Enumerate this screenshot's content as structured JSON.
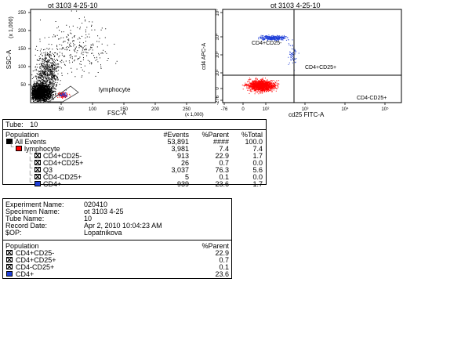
{
  "plot1": {
    "title": "ot 3103 4-25-10",
    "xlabel": "FSC-A",
    "ylabel": "SSC-A",
    "y_unit": "(x 1,000)",
    "x_unit": "(x 1,000)",
    "y_ticks": [
      "250",
      "200",
      "150",
      "100",
      "50"
    ],
    "x_ticks": [
      "50",
      "100",
      "150",
      "200",
      "250"
    ],
    "gate_label": "lymphocyte"
  },
  "plot2": {
    "title": "ot 3103 4-25-10",
    "xlabel": "cd25 FITC-A",
    "ylabel": "cd4 APC-A",
    "x_ticks": [
      "-76",
      "0",
      "10²",
      "10³",
      "10⁴",
      "10⁵"
    ],
    "y_ticks": [
      "10⁵",
      "10⁴",
      "10³",
      "10²",
      "0",
      "-276"
    ],
    "q_ul": "CD4+CD25-",
    "q_ur": "CD4+CD25+",
    "q_lr": "CD4-CD25+"
  },
  "stats": {
    "tube_label": "Tube:",
    "tube_value": "10",
    "headers": {
      "population": "Population",
      "events": "#Events",
      "parent": "%Parent",
      "total": "%Total"
    },
    "rows": [
      {
        "name": "All Events",
        "events": "53,891",
        "parent": "####",
        "total": "100.0",
        "swatch": "black"
      },
      {
        "name": "lymphocyte",
        "events": "3,981",
        "parent": "7.4",
        "total": "7.4",
        "swatch": "red"
      },
      {
        "name": "CD4+CD25-",
        "events": "913",
        "parent": "22.9",
        "total": "1.7",
        "swatch": "x"
      },
      {
        "name": "CD4+CD25+",
        "events": "26",
        "parent": "0.7",
        "total": "0.0",
        "swatch": "x"
      },
      {
        "name": "Q3",
        "events": "3,037",
        "parent": "76.3",
        "total": "5.6",
        "swatch": "x"
      },
      {
        "name": "CD4-CD25+",
        "events": "5",
        "parent": "0.1",
        "total": "0.0",
        "swatch": "x"
      },
      {
        "name": "CD4+",
        "events": "939",
        "parent": "23.6",
        "total": "1.7",
        "swatch": "blue"
      }
    ]
  },
  "exp": {
    "fields": [
      {
        "label": "Experiment Name:",
        "value": "020410"
      },
      {
        "label": "Specimen Name:",
        "value": "ot 3103 4-25"
      },
      {
        "label": "Tube Name:",
        "value": "10"
      },
      {
        "label": "Record Date:",
        "value": "Apr 2, 2010 10:04:23 AM"
      },
      {
        "label": "$OP:",
        "value": "Lopatnikova"
      }
    ],
    "headers": {
      "population": "Population",
      "parent": "%Parent"
    },
    "rows": [
      {
        "name": "CD4+CD25-",
        "parent": "22.9",
        "swatch": "x"
      },
      {
        "name": "CD4+CD25+",
        "parent": "0.7",
        "swatch": "x"
      },
      {
        "name": "CD4-CD25+",
        "parent": "0.1",
        "swatch": "x"
      },
      {
        "name": "CD4+",
        "parent": "23.6",
        "swatch": "blue"
      }
    ]
  },
  "colors": {
    "black": "#000000",
    "red": "#ff0000",
    "blue": "#1f3fd8"
  }
}
